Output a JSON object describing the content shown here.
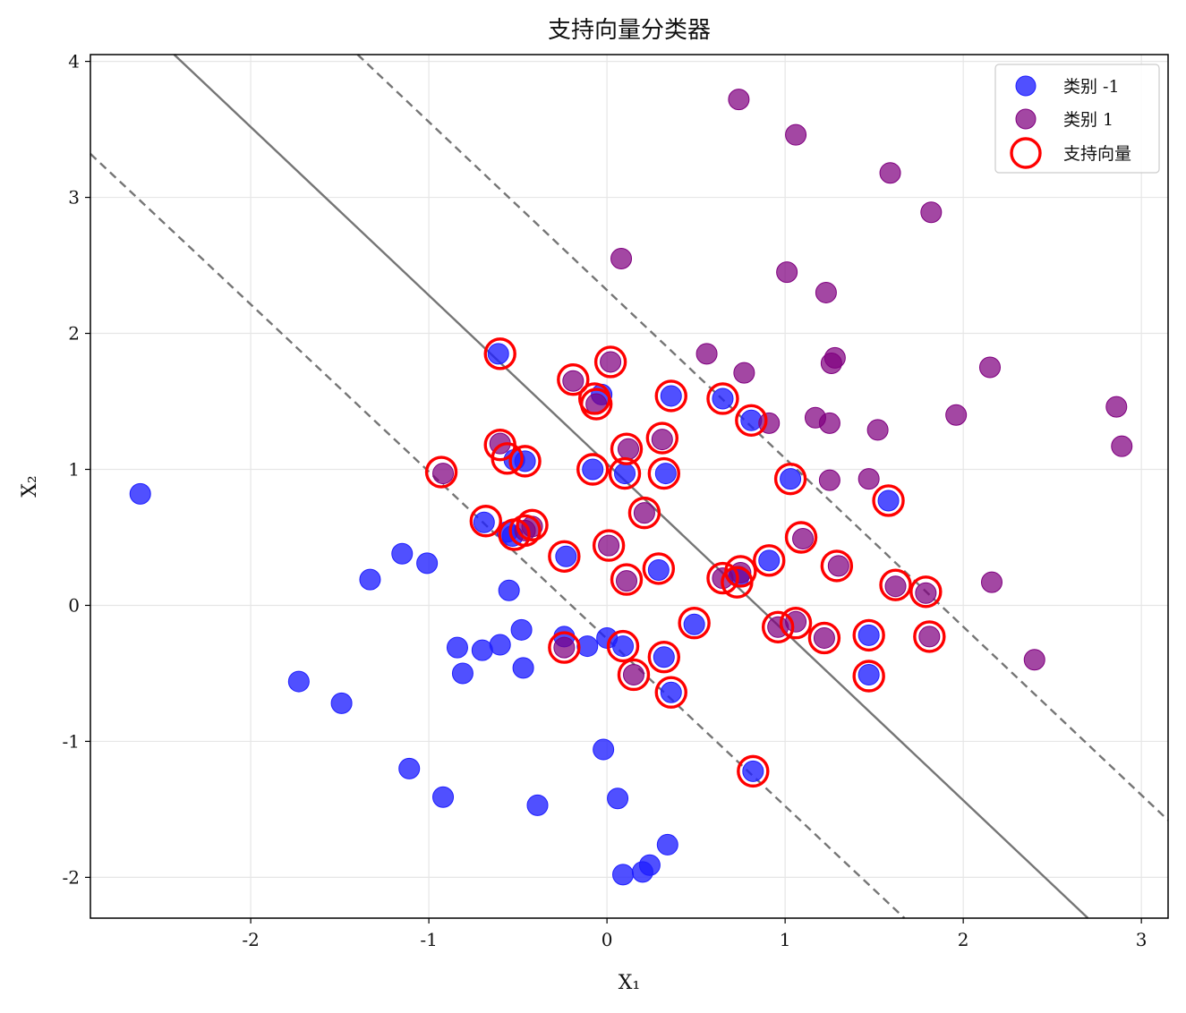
{
  "chart_data": {
    "type": "scatter",
    "title": "支持向量分类器",
    "xlabel": "X₁",
    "ylabel": "X₂",
    "xlim": [
      -2.9,
      3.15
    ],
    "ylim": [
      -2.3,
      4.05
    ],
    "xticks": [
      -2,
      -1,
      0,
      1,
      2,
      3
    ],
    "yticks": [
      -2,
      -1,
      0,
      1,
      2,
      3,
      4
    ],
    "grid": true,
    "legend_position": "top-right",
    "colors": {
      "class_neg": "#1f1fff",
      "class_pos": "#800080",
      "support_vector": "#ff0000",
      "boundary": "#666666"
    },
    "series": [
      {
        "name": "类别 -1",
        "points": [
          [
            -2.62,
            0.82
          ],
          [
            -1.73,
            -0.56
          ],
          [
            -1.49,
            -0.72
          ],
          [
            -1.33,
            0.19
          ],
          [
            -1.15,
            0.38
          ],
          [
            -1.11,
            -1.2
          ],
          [
            -1.01,
            0.31
          ],
          [
            -0.92,
            -1.41
          ],
          [
            -0.84,
            -0.31
          ],
          [
            -0.81,
            -0.5
          ],
          [
            -0.7,
            -0.33
          ],
          [
            -0.6,
            -0.29
          ],
          [
            -0.48,
            -0.18
          ],
          [
            -0.47,
            -0.46
          ],
          [
            -0.55,
            0.11
          ],
          [
            -0.39,
            -1.47
          ],
          [
            -0.24,
            -0.23
          ],
          [
            -0.11,
            -0.3
          ],
          [
            0.0,
            -0.24
          ],
          [
            -0.02,
            -1.06
          ],
          [
            0.06,
            -1.42
          ],
          [
            0.09,
            -1.98
          ],
          [
            0.2,
            -1.96
          ],
          [
            0.24,
            -1.91
          ],
          [
            0.34,
            -1.76
          ],
          [
            -0.61,
            1.85
          ],
          [
            -0.03,
            1.55
          ],
          [
            0.36,
            1.54
          ],
          [
            0.65,
            1.52
          ],
          [
            0.81,
            1.36
          ],
          [
            -0.46,
            1.06
          ],
          [
            -0.52,
            1.07
          ],
          [
            -0.08,
            1.0
          ],
          [
            0.1,
            0.97
          ],
          [
            0.33,
            0.97
          ],
          [
            1.03,
            0.93
          ],
          [
            1.58,
            0.77
          ],
          [
            -0.69,
            0.61
          ],
          [
            -0.56,
            0.54
          ],
          [
            -0.53,
            0.51
          ],
          [
            -0.23,
            0.36
          ],
          [
            0.29,
            0.26
          ],
          [
            0.74,
            0.21
          ],
          [
            0.91,
            0.33
          ],
          [
            0.49,
            -0.14
          ],
          [
            0.09,
            -0.3
          ],
          [
            0.32,
            -0.38
          ],
          [
            0.36,
            -0.64
          ],
          [
            1.47,
            -0.22
          ],
          [
            1.47,
            -0.51
          ],
          [
            0.82,
            -1.22
          ]
        ]
      },
      {
        "name": "类别 1",
        "points": [
          [
            0.74,
            3.72
          ],
          [
            1.06,
            3.46
          ],
          [
            1.59,
            3.18
          ],
          [
            1.82,
            2.89
          ],
          [
            0.08,
            2.55
          ],
          [
            1.01,
            2.45
          ],
          [
            1.23,
            2.3
          ],
          [
            0.56,
            1.85
          ],
          [
            1.28,
            1.82
          ],
          [
            1.26,
            1.78
          ],
          [
            0.77,
            1.71
          ],
          [
            2.15,
            1.75
          ],
          [
            0.02,
            1.79
          ],
          [
            -0.19,
            1.65
          ],
          [
            -0.06,
            1.48
          ],
          [
            1.96,
            1.4
          ],
          [
            2.86,
            1.46
          ],
          [
            0.91,
            1.34
          ],
          [
            1.17,
            1.38
          ],
          [
            1.25,
            1.34
          ],
          [
            1.52,
            1.29
          ],
          [
            2.89,
            1.17
          ],
          [
            -0.6,
            1.19
          ],
          [
            0.12,
            1.15
          ],
          [
            0.31,
            1.22
          ],
          [
            -0.92,
            0.97
          ],
          [
            1.25,
            0.92
          ],
          [
            1.47,
            0.93
          ],
          [
            0.21,
            0.68
          ],
          [
            -0.42,
            0.58
          ],
          [
            -0.46,
            0.55
          ],
          [
            0.01,
            0.44
          ],
          [
            1.1,
            0.49
          ],
          [
            1.3,
            0.29
          ],
          [
            0.65,
            0.2
          ],
          [
            0.75,
            0.24
          ],
          [
            0.11,
            0.18
          ],
          [
            1.62,
            0.14
          ],
          [
            1.79,
            0.09
          ],
          [
            2.16,
            0.17
          ],
          [
            0.96,
            -0.16
          ],
          [
            1.06,
            -0.12
          ],
          [
            1.22,
            -0.24
          ],
          [
            1.81,
            -0.23
          ],
          [
            -0.24,
            -0.31
          ],
          [
            0.15,
            -0.51
          ],
          [
            2.4,
            -0.4
          ]
        ]
      },
      {
        "name": "支持向量",
        "points": [
          [
            -0.6,
            1.85
          ],
          [
            -0.19,
            1.66
          ],
          [
            0.02,
            1.79
          ],
          [
            -0.07,
            1.52
          ],
          [
            -0.06,
            1.48
          ],
          [
            0.36,
            1.54
          ],
          [
            0.65,
            1.52
          ],
          [
            0.81,
            1.36
          ],
          [
            -0.6,
            1.18
          ],
          [
            -0.56,
            1.08
          ],
          [
            -0.46,
            1.06
          ],
          [
            0.11,
            1.15
          ],
          [
            0.31,
            1.23
          ],
          [
            -0.08,
            1.0
          ],
          [
            0.1,
            0.97
          ],
          [
            0.32,
            0.97
          ],
          [
            1.03,
            0.93
          ],
          [
            1.58,
            0.77
          ],
          [
            -0.93,
            0.98
          ],
          [
            -0.68,
            0.62
          ],
          [
            -0.52,
            0.52
          ],
          [
            -0.46,
            0.55
          ],
          [
            -0.42,
            0.59
          ],
          [
            0.21,
            0.68
          ],
          [
            -0.24,
            0.36
          ],
          [
            0.01,
            0.44
          ],
          [
            0.29,
            0.27
          ],
          [
            0.11,
            0.19
          ],
          [
            0.65,
            0.2
          ],
          [
            0.75,
            0.25
          ],
          [
            0.73,
            0.17
          ],
          [
            0.91,
            0.33
          ],
          [
            1.09,
            0.5
          ],
          [
            1.29,
            0.29
          ],
          [
            1.62,
            0.15
          ],
          [
            1.79,
            0.1
          ],
          [
            0.49,
            -0.13
          ],
          [
            0.96,
            -0.16
          ],
          [
            1.06,
            -0.13
          ],
          [
            1.22,
            -0.24
          ],
          [
            1.47,
            -0.22
          ],
          [
            1.81,
            -0.23
          ],
          [
            -0.24,
            -0.31
          ],
          [
            0.09,
            -0.3
          ],
          [
            0.15,
            -0.51
          ],
          [
            0.32,
            -0.38
          ],
          [
            0.36,
            -0.64
          ],
          [
            1.47,
            -0.52
          ],
          [
            0.82,
            -1.22
          ]
        ]
      }
    ],
    "decision_boundary": {
      "points": [
        [
          -2.43,
          4.05
        ],
        [
          2.7,
          -2.3
        ]
      ]
    },
    "margins": [
      {
        "points": [
          [
            -1.4,
            4.05
          ],
          [
            3.15,
            -1.58
          ]
        ]
      },
      {
        "points": [
          [
            -2.9,
            3.32
          ],
          [
            1.67,
            -2.3
          ]
        ]
      }
    ]
  }
}
